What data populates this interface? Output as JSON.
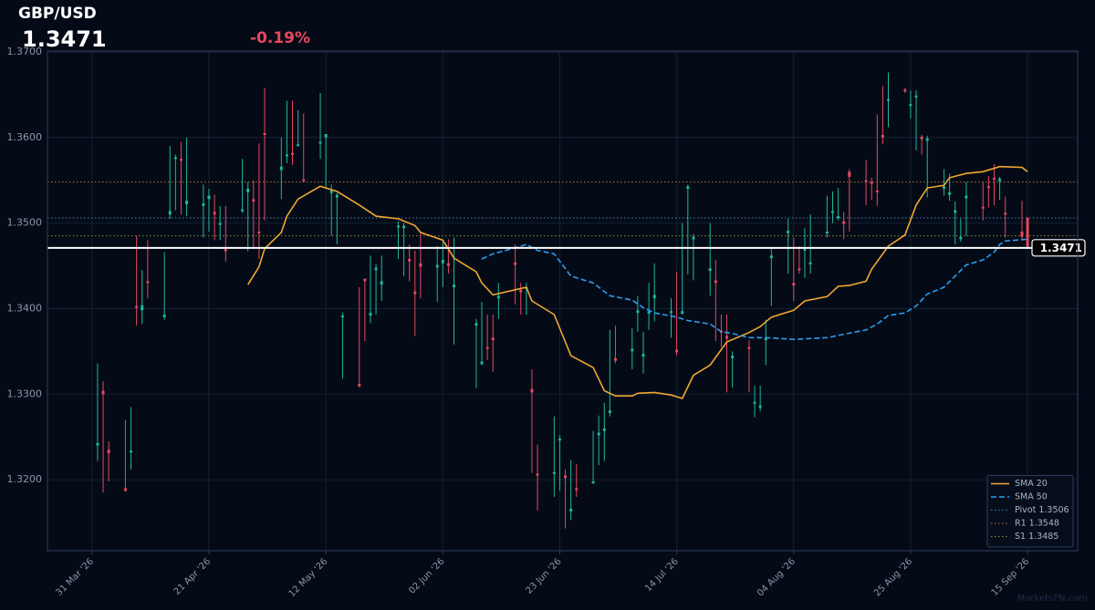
{
  "chart_data": {
    "type": "candlestick",
    "title": "GBP/USD",
    "last_price": 1.3471,
    "change": {
      "value": -0.19,
      "label": "-0.19%"
    },
    "watermark": "MarketsFN.com",
    "up_color": "#1fb89a",
    "down_color": "#e8475f",
    "price_line_color": "#ffffff",
    "grid": true,
    "legend_position": "lower right",
    "xlim": [
      "2026-03-23",
      "2026-09-24"
    ],
    "xticks": [
      {
        "value": "2026-03-31",
        "label": "31 Mar '26"
      },
      {
        "value": "2026-04-21",
        "label": "21 Apr '26"
      },
      {
        "value": "2026-05-12",
        "label": "12 May '26"
      },
      {
        "value": "2026-06-02",
        "label": "02 Jun '26"
      },
      {
        "value": "2026-06-23",
        "label": "23 Jun '26"
      },
      {
        "value": "2026-07-14",
        "label": "14 Jul '26"
      },
      {
        "value": "2026-08-04",
        "label": "04 Aug '26"
      },
      {
        "value": "2026-08-25",
        "label": "25 Aug '26"
      },
      {
        "value": "2026-09-15",
        "label": "15 Sep '26"
      }
    ],
    "ylim": [
      1.3117,
      1.3701
    ],
    "yticks": [
      {
        "value": 1.32,
        "label": "1.3200"
      },
      {
        "value": 1.33,
        "label": "1.3300"
      },
      {
        "value": 1.34,
        "label": "1.3400"
      },
      {
        "value": 1.35,
        "label": "1.3500"
      },
      {
        "value": 1.36,
        "label": "1.3600"
      },
      {
        "value": 1.37,
        "label": "1.3700"
      }
    ],
    "candles": {
      "x": [
        "2026-04-01",
        "2026-04-02",
        "2026-04-03",
        "2026-04-06",
        "2026-04-07",
        "2026-04-08",
        "2026-04-09",
        "2026-04-10",
        "2026-04-13",
        "2026-04-14",
        "2026-04-15",
        "2026-04-16",
        "2026-04-17",
        "2026-04-20",
        "2026-04-21",
        "2026-04-22",
        "2026-04-23",
        "2026-04-24",
        "2026-04-27",
        "2026-04-28",
        "2026-04-29",
        "2026-04-30",
        "2026-05-01",
        "2026-05-04",
        "2026-05-05",
        "2026-05-06",
        "2026-05-07",
        "2026-05-08",
        "2026-05-11",
        "2026-05-12",
        "2026-05-13",
        "2026-05-14",
        "2026-05-15",
        "2026-05-18",
        "2026-05-19",
        "2026-05-20",
        "2026-05-21",
        "2026-05-22",
        "2026-05-25",
        "2026-05-26",
        "2026-05-27",
        "2026-05-28",
        "2026-05-29",
        "2026-06-01",
        "2026-06-02",
        "2026-06-03",
        "2026-06-04",
        "2026-06-08",
        "2026-06-09",
        "2026-06-10",
        "2026-06-11",
        "2026-06-12",
        "2026-06-15",
        "2026-06-16",
        "2026-06-17",
        "2026-06-18",
        "2026-06-19",
        "2026-06-22",
        "2026-06-23",
        "2026-06-24",
        "2026-06-25",
        "2026-06-26",
        "2026-06-29",
        "2026-06-30",
        "2026-07-01",
        "2026-07-02",
        "2026-07-03",
        "2026-07-06",
        "2026-07-07",
        "2026-07-08",
        "2026-07-09",
        "2026-07-10",
        "2026-07-13",
        "2026-07-14",
        "2026-07-15",
        "2026-07-16",
        "2026-07-17",
        "2026-07-20",
        "2026-07-21",
        "2026-07-22",
        "2026-07-23",
        "2026-07-24",
        "2026-07-27",
        "2026-07-28",
        "2026-07-29",
        "2026-07-30",
        "2026-07-31",
        "2026-08-03",
        "2026-08-04",
        "2026-08-05",
        "2026-08-06",
        "2026-08-07",
        "2026-08-10",
        "2026-08-11",
        "2026-08-12",
        "2026-08-13",
        "2026-08-14",
        "2026-08-17",
        "2026-08-18",
        "2026-08-19",
        "2026-08-20",
        "2026-08-21",
        "2026-08-24",
        "2026-08-25",
        "2026-08-26",
        "2026-08-27",
        "2026-08-28",
        "2026-08-31",
        "2026-09-01",
        "2026-09-02",
        "2026-09-03",
        "2026-09-04",
        "2026-09-07",
        "2026-09-08",
        "2026-09-09",
        "2026-09-10",
        "2026-09-11",
        "2026-09-14",
        "2026-09-15"
      ],
      "open": [
        1.324,
        1.3304,
        1.3235,
        1.319,
        1.3232,
        1.3403,
        1.3398,
        1.3432,
        1.339,
        1.351,
        1.3575,
        1.3575,
        1.3522,
        1.352,
        1.3528,
        1.3513,
        1.3498,
        1.347,
        1.3514,
        1.3536,
        1.3528,
        1.349,
        1.3605,
        1.3562,
        1.3578,
        1.3582,
        1.359,
        1.3551,
        1.3593,
        1.36,
        1.3535,
        1.353,
        1.339,
        1.3312,
        1.3435,
        1.3392,
        1.3445,
        1.3428,
        1.3495,
        1.3494,
        1.3458,
        1.342,
        1.3453,
        1.3448,
        1.3453,
        1.3453,
        1.3425,
        1.338,
        1.3335,
        1.3355,
        1.3366,
        1.3412,
        1.3454,
        1.3422,
        1.3423,
        1.3306,
        1.3207,
        1.3207,
        1.3246,
        1.3205,
        1.3163,
        1.319,
        1.3196,
        1.3252,
        1.3257,
        1.3278,
        1.3342,
        1.335,
        1.3395,
        1.3344,
        1.3394,
        1.3412,
        1.3395,
        1.3352,
        1.3394,
        1.354,
        1.3481,
        1.3444,
        1.3433,
        1.3374,
        1.3368,
        1.3342,
        1.3355,
        1.3289,
        1.3284,
        1.3363,
        1.3459,
        1.3488,
        1.343,
        1.3447,
        1.3468,
        1.3452,
        1.3488,
        1.3512,
        1.3506,
        1.3502,
        1.356,
        1.355,
        1.3548,
        1.3538,
        1.3603,
        1.3643,
        1.3656,
        1.3637,
        1.3647,
        1.3601,
        1.3596,
        1.354,
        1.3533,
        1.3512,
        1.3481,
        1.3529,
        1.3519,
        1.3543,
        1.3553,
        1.3549,
        1.3512,
        1.349,
        1.3506
      ],
      "high": [
        1.3336,
        1.3315,
        1.3245,
        1.327,
        1.3285,
        1.3485,
        1.3445,
        1.348,
        1.3466,
        1.359,
        1.358,
        1.3595,
        1.36,
        1.3545,
        1.354,
        1.3533,
        1.352,
        1.352,
        1.3575,
        1.3548,
        1.355,
        1.3593,
        1.3658,
        1.36,
        1.3643,
        1.3643,
        1.3632,
        1.3628,
        1.3652,
        1.3604,
        1.3545,
        1.3535,
        1.3395,
        1.3425,
        1.3435,
        1.3462,
        1.3452,
        1.3462,
        1.3502,
        1.35,
        1.3475,
        1.3468,
        1.3488,
        1.3473,
        1.3478,
        1.3481,
        1.3483,
        1.3388,
        1.3408,
        1.3393,
        1.3393,
        1.343,
        1.3475,
        1.343,
        1.343,
        1.3329,
        1.3241,
        1.3274,
        1.3252,
        1.3212,
        1.3223,
        1.3218,
        1.3257,
        1.3275,
        1.329,
        1.3375,
        1.338,
        1.3377,
        1.3415,
        1.3373,
        1.343,
        1.3453,
        1.3412,
        1.3443,
        1.35,
        1.3545,
        1.3487,
        1.35,
        1.3457,
        1.3393,
        1.3393,
        1.335,
        1.3363,
        1.331,
        1.331,
        1.3387,
        1.347,
        1.3505,
        1.3483,
        1.3473,
        1.3494,
        1.351,
        1.3532,
        1.3537,
        1.3541,
        1.3513,
        1.3563,
        1.3574,
        1.3553,
        1.3627,
        1.366,
        1.3676,
        1.3658,
        1.3655,
        1.3655,
        1.3603,
        1.3602,
        1.3563,
        1.3558,
        1.3525,
        1.3505,
        1.3548,
        1.3548,
        1.3555,
        1.3569,
        1.3554,
        1.3531,
        1.3526,
        1.3507
      ],
      "low": [
        1.3222,
        1.3185,
        1.3198,
        1.3186,
        1.3212,
        1.338,
        1.3382,
        1.3412,
        1.3387,
        1.3505,
        1.3515,
        1.351,
        1.3508,
        1.3483,
        1.349,
        1.348,
        1.348,
        1.3455,
        1.3512,
        1.3467,
        1.347,
        1.3458,
        1.3503,
        1.3528,
        1.357,
        1.3568,
        1.359,
        1.3549,
        1.3575,
        1.354,
        1.3485,
        1.3475,
        1.3318,
        1.3308,
        1.3362,
        1.3383,
        1.3393,
        1.3409,
        1.3458,
        1.3438,
        1.3432,
        1.3368,
        1.3412,
        1.3408,
        1.3425,
        1.3441,
        1.3358,
        1.3307,
        1.3334,
        1.334,
        1.3326,
        1.3388,
        1.3405,
        1.3393,
        1.3393,
        1.3208,
        1.3164,
        1.318,
        1.3187,
        1.3143,
        1.3153,
        1.318,
        1.3195,
        1.3217,
        1.3222,
        1.3274,
        1.3336,
        1.3329,
        1.3373,
        1.3324,
        1.3375,
        1.3385,
        1.3366,
        1.3345,
        1.3393,
        1.344,
        1.3433,
        1.3415,
        1.3362,
        1.3355,
        1.3302,
        1.3308,
        1.3302,
        1.3273,
        1.328,
        1.3334,
        1.3403,
        1.3441,
        1.3409,
        1.3441,
        1.3436,
        1.3441,
        1.3483,
        1.35,
        1.3503,
        1.3481,
        1.349,
        1.3521,
        1.3527,
        1.352,
        1.3592,
        1.3612,
        1.3652,
        1.3622,
        1.3585,
        1.358,
        1.353,
        1.3532,
        1.3526,
        1.3475,
        1.3478,
        1.3485,
        1.3503,
        1.3518,
        1.3521,
        1.3527,
        1.3483,
        1.3481,
        1.347
      ],
      "close": [
        1.3243,
        1.33,
        1.3231,
        1.3187,
        1.3234,
        1.3401,
        1.3404,
        1.343,
        1.3393,
        1.3514,
        1.3577,
        1.3573,
        1.3526,
        1.3523,
        1.3532,
        1.351,
        1.35,
        1.3467,
        1.3516,
        1.354,
        1.3525,
        1.3488,
        1.3603,
        1.3566,
        1.358,
        1.358,
        1.3592,
        1.355,
        1.3595,
        1.3604,
        1.3538,
        1.3533,
        1.3392,
        1.3309,
        1.3432,
        1.3395,
        1.3448,
        1.3432,
        1.3497,
        1.3497,
        1.3455,
        1.3417,
        1.3449,
        1.3451,
        1.3457,
        1.345,
        1.3428,
        1.3383,
        1.3338,
        1.3353,
        1.3363,
        1.3415,
        1.3451,
        1.3419,
        1.3425,
        1.3302,
        1.3205,
        1.3209,
        1.3248,
        1.3202,
        1.3166,
        1.3188,
        1.3198,
        1.3255,
        1.326,
        1.3281,
        1.3339,
        1.3353,
        1.3398,
        1.3347,
        1.3397,
        1.3416,
        1.3397,
        1.3349,
        1.3397,
        1.3543,
        1.3484,
        1.3447,
        1.343,
        1.3372,
        1.3365,
        1.3345,
        1.3353,
        1.3291,
        1.3287,
        1.3366,
        1.3462,
        1.3491,
        1.3427,
        1.3445,
        1.347,
        1.3454,
        1.349,
        1.3514,
        1.3508,
        1.3499,
        1.3554,
        1.3548,
        1.3546,
        1.3536,
        1.36,
        1.3645,
        1.3654,
        1.3639,
        1.3649,
        1.3598,
        1.3599,
        1.3543,
        1.3536,
        1.3515,
        1.3484,
        1.3532,
        1.3517,
        1.3541,
        1.3551,
        1.3552,
        1.351,
        1.3484,
        1.3471
      ]
    },
    "series": [
      {
        "name": "SMA 20",
        "color": "#f0a630",
        "style": "solid",
        "x": [
          "2026-04-28",
          "2026-04-30",
          "2026-05-01",
          "2026-05-04",
          "2026-05-05",
          "2026-05-07",
          "2026-05-11",
          "2026-05-14",
          "2026-05-18",
          "2026-05-21",
          "2026-05-25",
          "2026-05-28",
          "2026-05-29",
          "2026-06-02",
          "2026-06-04",
          "2026-06-08",
          "2026-06-09",
          "2026-06-11",
          "2026-06-15",
          "2026-06-17",
          "2026-06-18",
          "2026-06-22",
          "2026-06-25",
          "2026-06-29",
          "2026-07-01",
          "2026-07-03",
          "2026-07-06",
          "2026-07-07",
          "2026-07-10",
          "2026-07-13",
          "2026-07-15",
          "2026-07-17",
          "2026-07-20",
          "2026-07-23",
          "2026-07-27",
          "2026-07-29",
          "2026-07-31",
          "2026-08-04",
          "2026-08-06",
          "2026-08-10",
          "2026-08-12",
          "2026-08-14",
          "2026-08-17",
          "2026-08-18",
          "2026-08-21",
          "2026-08-24",
          "2026-08-26",
          "2026-08-28",
          "2026-08-31",
          "2026-09-01",
          "2026-09-04",
          "2026-09-07",
          "2026-09-10",
          "2026-09-14",
          "2026-09-15"
        ],
        "values": [
          1.3428,
          1.3449,
          1.347,
          1.3489,
          1.3508,
          1.3528,
          1.3543,
          1.3537,
          1.3521,
          1.3508,
          1.3505,
          1.3497,
          1.3489,
          1.348,
          1.3459,
          1.3443,
          1.343,
          1.3416,
          1.3422,
          1.3425,
          1.3409,
          1.3393,
          1.3345,
          1.3331,
          1.3304,
          1.3298,
          1.3298,
          1.3301,
          1.3302,
          1.3299,
          1.3295,
          1.3322,
          1.3334,
          1.3361,
          1.3372,
          1.3379,
          1.339,
          1.3398,
          1.3409,
          1.3414,
          1.3426,
          1.3427,
          1.3432,
          1.3446,
          1.3473,
          1.3486,
          1.3521,
          1.3541,
          1.3544,
          1.3553,
          1.3558,
          1.356,
          1.3566,
          1.3565,
          1.356
        ]
      },
      {
        "name": "SMA 50",
        "color": "#2d9cf0",
        "style": "dashed",
        "x": [
          "2026-06-09",
          "2026-06-11",
          "2026-06-15",
          "2026-06-17",
          "2026-06-19",
          "2026-06-22",
          "2026-06-25",
          "2026-06-29",
          "2026-07-02",
          "2026-07-06",
          "2026-07-08",
          "2026-07-10",
          "2026-07-14",
          "2026-07-16",
          "2026-07-20",
          "2026-07-22",
          "2026-07-24",
          "2026-07-27",
          "2026-07-30",
          "2026-08-04",
          "2026-08-10",
          "2026-08-13",
          "2026-08-17",
          "2026-08-19",
          "2026-08-21",
          "2026-08-24",
          "2026-08-26",
          "2026-08-28",
          "2026-08-31",
          "2026-09-02",
          "2026-09-04",
          "2026-09-07",
          "2026-09-09",
          "2026-09-10",
          "2026-09-11",
          "2026-09-15"
        ],
        "values": [
          1.3458,
          1.3464,
          1.3471,
          1.3475,
          1.3468,
          1.3464,
          1.3438,
          1.343,
          1.3415,
          1.341,
          1.3401,
          1.3395,
          1.339,
          1.3386,
          1.3382,
          1.3373,
          1.3371,
          1.3366,
          1.3366,
          1.3364,
          1.3366,
          1.337,
          1.3375,
          1.3382,
          1.3392,
          1.3395,
          1.3403,
          1.3417,
          1.3425,
          1.3438,
          1.3451,
          1.3457,
          1.3466,
          1.3475,
          1.3479,
          1.3481
        ]
      }
    ],
    "levels": [
      {
        "name": "Pivot 1.3506",
        "value": 1.3506,
        "color": "#4d7fc4"
      },
      {
        "name": "R1 1.3548",
        "value": 1.3548,
        "color": "#b8763a"
      },
      {
        "name": "S1 1.3485",
        "value": 1.3485,
        "color": "#8c8a3c"
      }
    ]
  }
}
